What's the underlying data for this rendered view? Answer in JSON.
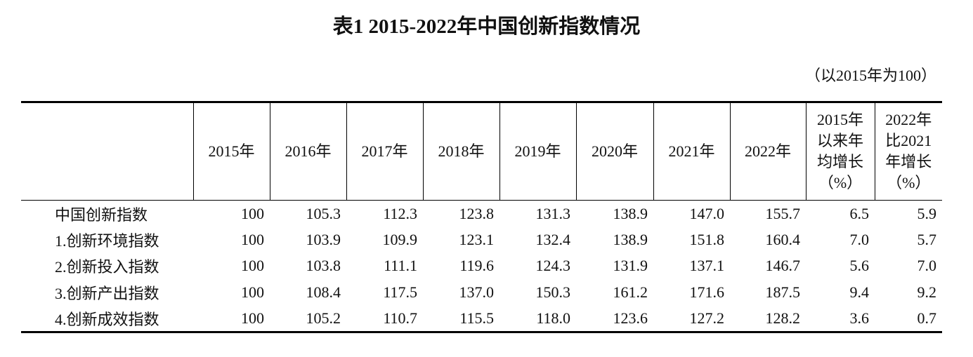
{
  "title": "表1 2015-2022年中国创新指数情况",
  "note": "（以2015年为100）",
  "table": {
    "header": [
      [
        ""
      ],
      [
        "2015年"
      ],
      [
        "2016年"
      ],
      [
        "2017年"
      ],
      [
        "2018年"
      ],
      [
        "2019年"
      ],
      [
        "2020年"
      ],
      [
        "2021年"
      ],
      [
        "2022年"
      ],
      [
        "2015年",
        "以来年",
        "均增长",
        "（%）"
      ],
      [
        "2022年",
        "比2021",
        "年增长",
        "（%）"
      ]
    ],
    "rows": [
      [
        "中国创新指数",
        "100",
        "105.3",
        "112.3",
        "123.8",
        "131.3",
        "138.9",
        "147.0",
        "155.7",
        "6.5",
        "5.9"
      ],
      [
        "1.创新环境指数",
        "100",
        "103.9",
        "109.9",
        "123.1",
        "132.4",
        "138.9",
        "151.8",
        "160.4",
        "7.0",
        "5.7"
      ],
      [
        "2.创新投入指数",
        "100",
        "103.8",
        "111.1",
        "119.6",
        "124.3",
        "131.9",
        "137.1",
        "146.7",
        "5.6",
        "7.0"
      ],
      [
        "3.创新产出指数",
        "100",
        "108.4",
        "117.5",
        "137.0",
        "150.3",
        "161.2",
        "171.6",
        "187.5",
        "9.4",
        "9.2"
      ],
      [
        "4.创新成效指数",
        "100",
        "105.2",
        "110.7",
        "115.5",
        "118.0",
        "123.6",
        "127.2",
        "128.2",
        "3.6",
        "0.7"
      ]
    ]
  }
}
